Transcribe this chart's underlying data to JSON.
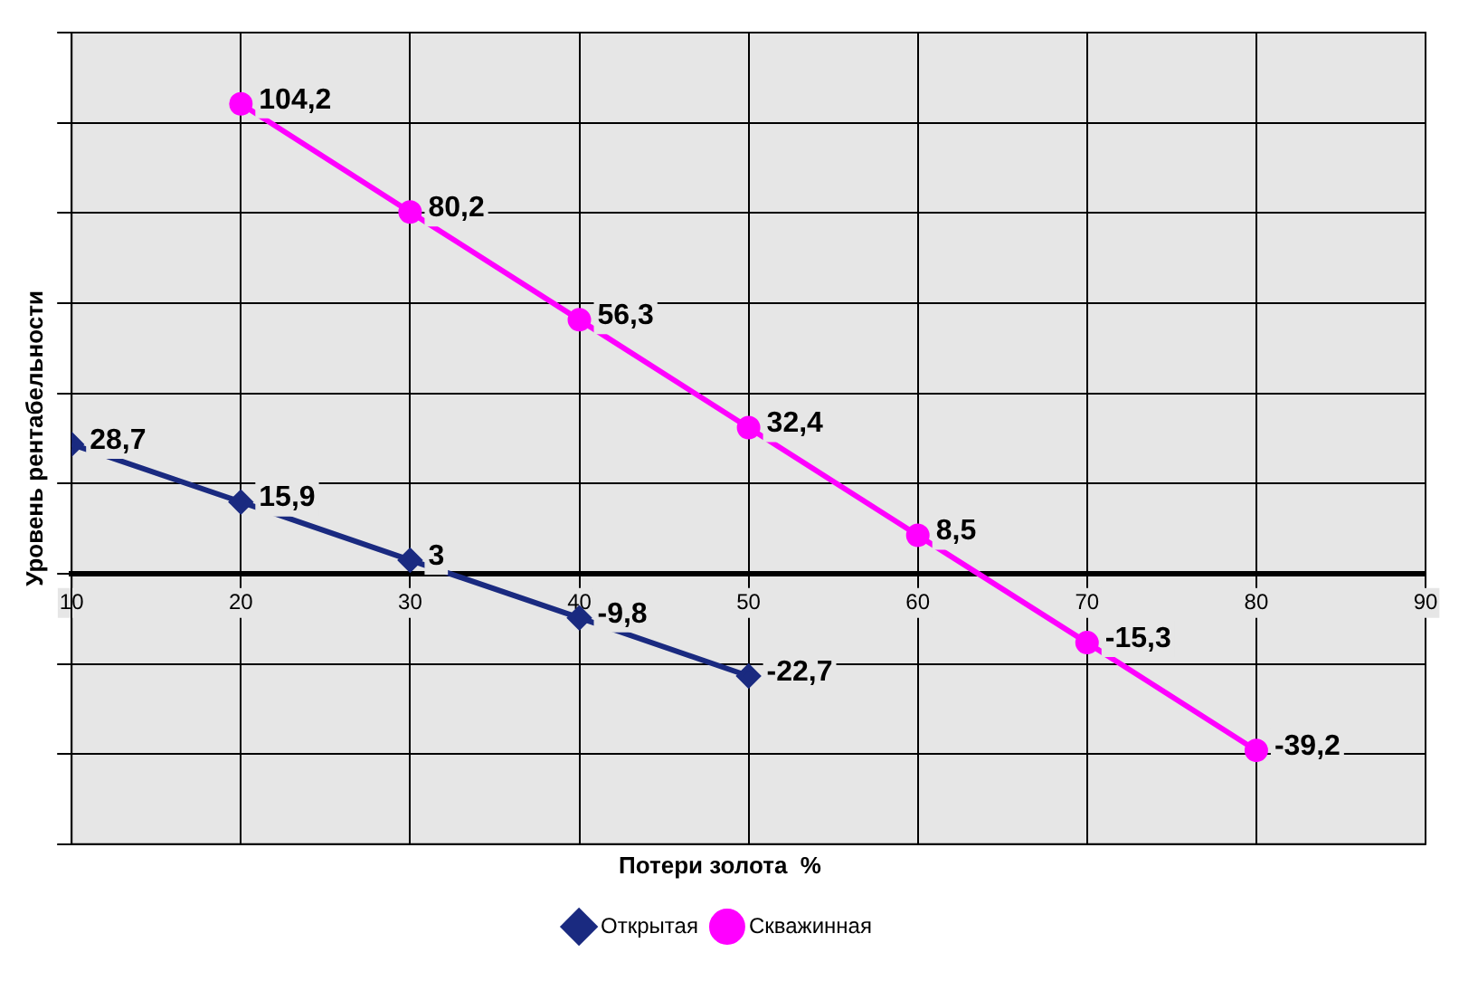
{
  "chart_data": {
    "type": "line",
    "xlabel": "Потери золота  %",
    "ylabel": "Уровень рентабельности",
    "xlim": [
      10,
      90
    ],
    "xticks": [
      10,
      20,
      30,
      40,
      50,
      60,
      70,
      80,
      90
    ],
    "ylim": [
      -60,
      120
    ],
    "yticks": [
      {
        "value": -60,
        "label": null
      },
      {
        "value": -40,
        "label": null
      },
      {
        "value": -20,
        "label": null
      },
      {
        "value": 0,
        "label": null
      },
      {
        "value": 20,
        "label": null
      },
      {
        "value": 40,
        "label": null
      },
      {
        "value": 60,
        "label": null
      },
      {
        "value": 80,
        "label": null
      },
      {
        "value": 100,
        "label": null
      },
      {
        "value": 120,
        "label": null
      }
    ],
    "tick_labels": "x",
    "grid": true,
    "legend": "bottom",
    "line_style": "solid",
    "series": [
      {
        "name": "Открытая",
        "color": "#1a2a80",
        "marker": "diamond",
        "x": [
          10,
          20,
          30,
          40,
          50
        ],
        "values": [
          28.7,
          15.9,
          3,
          -9.8,
          -22.7
        ],
        "value_labels": [
          "28,7",
          "15,9",
          "3",
          "-9,8",
          "-22,7"
        ]
      },
      {
        "name": "Скважинная",
        "color": "#ff00ff",
        "marker": "circle",
        "x": [
          20,
          30,
          40,
          50,
          60,
          70,
          80
        ],
        "values": [
          104.2,
          80.2,
          56.3,
          32.4,
          8.5,
          -15.3,
          -39.2
        ],
        "value_labels": [
          "104,2",
          "80,2",
          "56,3",
          "32,4",
          "8,5",
          "-15,3",
          "-39,2"
        ]
      }
    ]
  }
}
